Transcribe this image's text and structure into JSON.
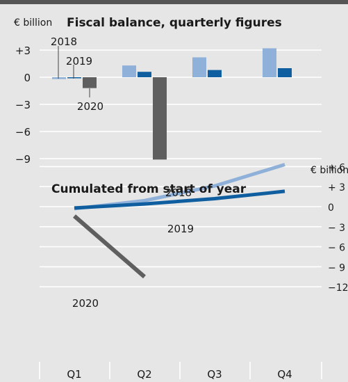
{
  "colors": {
    "background": "#e6e6e6",
    "grid": "#ffffff",
    "c2018": "#8fb0d8",
    "c2019": "#0f5fa0",
    "c2020": "#5f5f5f"
  },
  "chart_data": [
    {
      "type": "bar",
      "title": "Fiscal balance, quarterly figures",
      "unit_label": "€ billion",
      "categories": [
        "Q1",
        "Q2",
        "Q3",
        "Q4"
      ],
      "ylim": [
        -9,
        4
      ],
      "yticks": [
        {
          "value": 3,
          "label": "+3"
        },
        {
          "value": 0,
          "label": "0"
        },
        {
          "value": -3,
          "label": "−3"
        },
        {
          "value": -6,
          "label": "−6"
        },
        {
          "value": -9,
          "label": "−9"
        }
      ],
      "series": [
        {
          "name": "2018",
          "values": [
            -0.2,
            1.3,
            2.2,
            3.2
          ]
        },
        {
          "name": "2019",
          "values": [
            -0.1,
            0.6,
            0.8,
            1.0
          ]
        },
        {
          "name": "2020",
          "values": [
            -1.2,
            -9.1,
            null,
            null
          ]
        }
      ],
      "grid": true
    },
    {
      "type": "line",
      "title": "Cumulated from start of year",
      "unit_label": "€ billion",
      "categories": [
        "Q1",
        "Q2",
        "Q3",
        "Q4"
      ],
      "ylim": [
        -12,
        8
      ],
      "yticks": [
        {
          "value": 6,
          "label": "+ 6"
        },
        {
          "value": 3,
          "label": "+ 3"
        },
        {
          "value": 0,
          "label": "0"
        },
        {
          "value": -3,
          "label": "− 3"
        },
        {
          "value": -6,
          "label": "− 6"
        },
        {
          "value": -9,
          "label": "− 9"
        },
        {
          "value": -12,
          "label": "−12"
        }
      ],
      "series": [
        {
          "name": "2018",
          "values": [
            -0.3,
            0.9,
            3.1,
            6.3
          ]
        },
        {
          "name": "2019",
          "values": [
            -0.2,
            0.4,
            1.2,
            2.3
          ]
        },
        {
          "name": "2020",
          "values": [
            -1.4,
            -10.5,
            null,
            null
          ]
        }
      ],
      "grid": true
    }
  ]
}
